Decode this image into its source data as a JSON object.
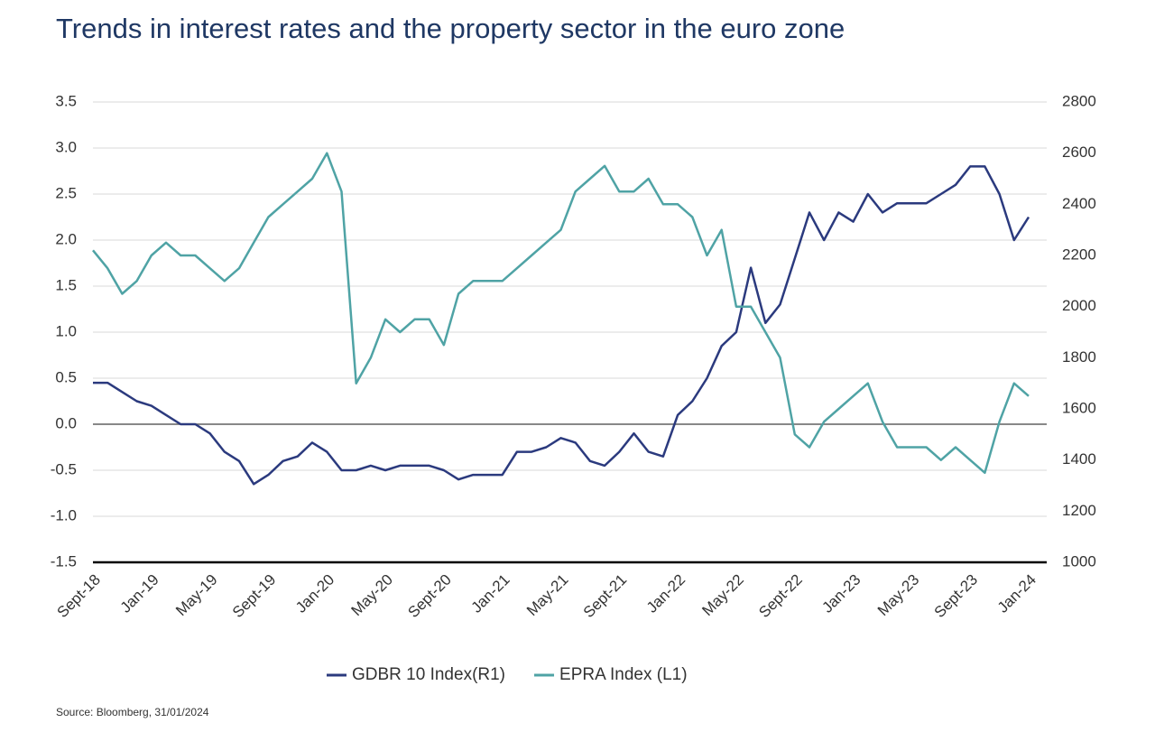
{
  "chart_data": {
    "type": "line",
    "title": "Trends in interest rates and the property sector in the euro zone",
    "source": "Source: Bloomberg, 31/01/2024",
    "categories": [
      "Sept-18",
      null,
      null,
      null,
      "Jan-19",
      null,
      null,
      null,
      "May-19",
      null,
      null,
      null,
      "Sept-19",
      null,
      null,
      null,
      "Jan-20",
      null,
      null,
      null,
      "May-20",
      null,
      null,
      null,
      "Sept-20",
      null,
      null,
      null,
      "Jan-21",
      null,
      null,
      null,
      "May-21",
      null,
      null,
      null,
      "Sept-21",
      null,
      null,
      null,
      "Jan-22",
      null,
      null,
      null,
      "May-22",
      null,
      null,
      null,
      "Sept-22",
      null,
      null,
      null,
      "Jan-23",
      null,
      null,
      null,
      "May-23",
      null,
      null,
      null,
      "Sept-23",
      null,
      null,
      null,
      "Jan-24"
    ],
    "series": [
      {
        "name": "GDBR 10 Index(R1)",
        "color": "#2b3a7e",
        "axis": "y",
        "values": [
          0.45,
          0.45,
          0.35,
          0.25,
          0.2,
          0.1,
          0.0,
          0.0,
          -0.1,
          -0.3,
          -0.4,
          -0.65,
          -0.55,
          -0.4,
          -0.35,
          -0.2,
          -0.3,
          -0.5,
          -0.5,
          -0.45,
          -0.5,
          -0.45,
          -0.45,
          -0.45,
          -0.5,
          -0.6,
          -0.55,
          -0.55,
          -0.55,
          -0.3,
          -0.3,
          -0.25,
          -0.15,
          -0.2,
          -0.4,
          -0.45,
          -0.3,
          -0.1,
          -0.3,
          -0.35,
          0.1,
          0.25,
          0.5,
          0.85,
          1.0,
          1.7,
          1.1,
          1.3,
          1.8,
          2.3,
          2.0,
          2.3,
          2.2,
          2.5,
          2.3,
          2.4,
          2.4,
          2.4,
          2.5,
          2.6,
          2.8,
          2.8,
          2.5,
          2.0,
          2.25
        ]
      },
      {
        "name": "EPRA Index (L1)",
        "color": "#4fa3a5",
        "axis": "y2",
        "values": [
          2220,
          2150,
          2050,
          2100,
          2200,
          2250,
          2200,
          2200,
          2150,
          2100,
          2150,
          2250,
          2350,
          2400,
          2450,
          2500,
          2600,
          2450,
          1700,
          1800,
          1950,
          1900,
          1950,
          1950,
          1850,
          2050,
          2100,
          2100,
          2100,
          2150,
          2200,
          2250,
          2300,
          2450,
          2500,
          2550,
          2450,
          2450,
          2500,
          2400,
          2400,
          2350,
          2200,
          2300,
          2000,
          2000,
          1900,
          1800,
          1500,
          1450,
          1550,
          1600,
          1650,
          1700,
          1550,
          1450,
          1450,
          1450,
          1400,
          1450,
          1400,
          1350,
          1550,
          1700,
          1650
        ]
      }
    ],
    "ylim": [
      -1.5,
      3.5
    ],
    "yticks": [
      {
        "value": -1.5,
        "label": "-1.5"
      },
      {
        "value": -1,
        "label": "-1.0"
      },
      -0.5,
      {
        "value": 0,
        "label": "0.0"
      },
      0.5,
      {
        "value": 1,
        "label": "1.0"
      },
      1.5,
      {
        "value": 2,
        "label": "2.0"
      },
      2.5,
      {
        "value": 3,
        "label": "3.0"
      },
      3.5
    ],
    "y2lim": [
      1000,
      2800
    ],
    "y2ticks": [
      1000,
      1200,
      1400,
      1600,
      1800,
      2000,
      2200,
      2400,
      2600,
      2800
    ],
    "grid": true,
    "legend": "bottom"
  }
}
